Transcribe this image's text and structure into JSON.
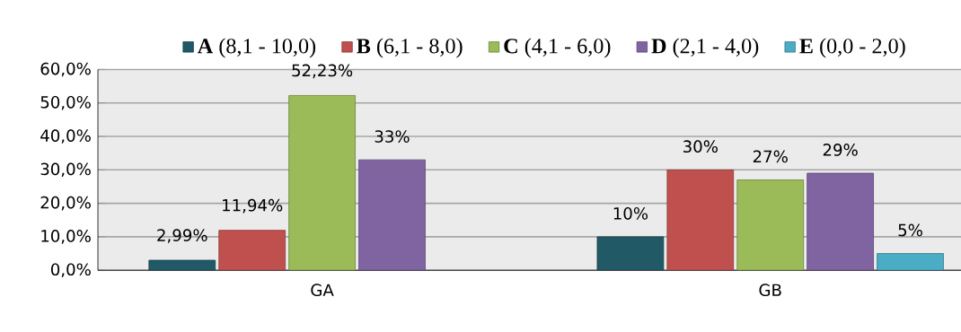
{
  "chart_data": {
    "type": "bar",
    "categories": [
      "GA",
      "GB"
    ],
    "series": [
      {
        "name": "**A** (8,1 - 10,0)",
        "color": "#215967",
        "values": [
          2.99,
          10
        ],
        "value_labels": [
          "2,99%",
          "10%"
        ]
      },
      {
        "name": "**B** (6,1 - 8,0)",
        "color": "#c0504d",
        "values": [
          11.94,
          30
        ],
        "value_labels": [
          "11,94%",
          "30%"
        ]
      },
      {
        "name": "**C** (4,1 - 6,0)",
        "color": "#9bbb59",
        "values": [
          52.23,
          27
        ],
        "value_labels": [
          "52,23%",
          "27%"
        ]
      },
      {
        "name": "**D** (2,1 - 4,0)",
        "color": "#8064a2",
        "values": [
          33,
          29
        ],
        "value_labels": [
          "33%",
          "29%"
        ]
      },
      {
        "name": "**E** (0,0 - 2,0)",
        "color": "#4bacc6",
        "values": [
          null,
          5
        ],
        "value_labels": [
          null,
          "5%"
        ]
      }
    ],
    "ylim": [
      0,
      60
    ],
    "yticks": [
      {
        "value": 0,
        "label": "0,0%"
      },
      {
        "value": 10,
        "label": "10,0%"
      },
      {
        "value": 20,
        "label": "20,0%"
      },
      {
        "value": 30,
        "label": "30,0%"
      },
      {
        "value": 40,
        "label": "40,0%"
      },
      {
        "value": 50,
        "label": "50,0%"
      },
      {
        "value": 60,
        "label": "60,0%"
      }
    ],
    "grid": "y",
    "legend": "top"
  }
}
